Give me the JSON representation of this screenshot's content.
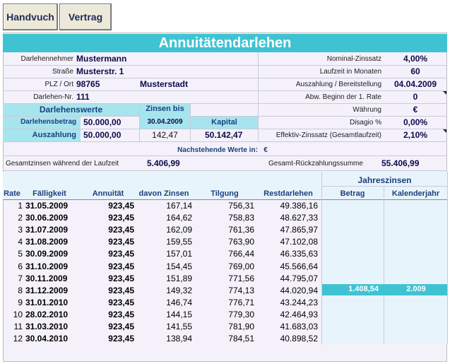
{
  "toolbar": {
    "handbuch_label": "Handvuch",
    "vertrag_label": "Vertrag"
  },
  "title": "Annuitätendarlehen",
  "borrower": {
    "name_label": "Darlehennehmer",
    "name": "Mustermann",
    "street_label": "Straße",
    "street": "Musterstr. 1",
    "plz_label": "PLZ / Ort",
    "plz": "98765",
    "city": "Musterstadt",
    "loan_no_label": "Darlehen-Nr.",
    "loan_no": "111"
  },
  "terms": {
    "nominal_label": "Nominal-Zinssatz",
    "nominal": "4,00%",
    "term_label": "Laufzeit in Monaten",
    "term": "60",
    "payout_date_label": "Auszahlung / Bereitstellung",
    "payout_date": "04.04.2009",
    "deviation_label": "Abw. Beginn der 1. Rate",
    "deviation": "0",
    "currency_label": "Währung",
    "currency": "€",
    "disagio_label": "Disagio %",
    "disagio": "0,00%",
    "effective_label": "Effektiv-Zinssatz (Gesamtlaufzeit)",
    "effective": "2,10%"
  },
  "values": {
    "header": "Darlehenswerte",
    "interest_until_label": "Zinsen bis",
    "interest_until_date": "30.04.2009",
    "kapital_label": "Kapital",
    "amount_label": "Darlehensbetrag",
    "amount": "50.000,00",
    "payout_label": "Auszahlung",
    "payout": "50.000,00",
    "interest": "142,47",
    "kapital": "50.142,47"
  },
  "summary": {
    "note_label": "Nachstehende Werte in:",
    "note_currency": "€",
    "total_interest_label": "Gesamtzinsen während der Laufzeit",
    "total_interest": "5.406,99",
    "total_repayment_label": "Gesamt-Rückzahlungssumme",
    "total_repayment": "55.406,99"
  },
  "table": {
    "headers": {
      "rate": "Rate",
      "date": "Fälligkeit",
      "annuity": "Annuität",
      "interest": "davon Zinsen",
      "repayment": "Tilgung",
      "rest": "Restdarlehen",
      "yearly": "Jahreszinsen",
      "amount": "Betrag",
      "year": "Kalenderjahr"
    },
    "rows": [
      {
        "n": "1",
        "date": "31.05.2009",
        "annuity": "923,45",
        "interest": "167,14",
        "repayment": "756,31",
        "rest": "49.386,16"
      },
      {
        "n": "2",
        "date": "30.06.2009",
        "annuity": "923,45",
        "interest": "164,62",
        "repayment": "758,83",
        "rest": "48.627,33"
      },
      {
        "n": "3",
        "date": "31.07.2009",
        "annuity": "923,45",
        "interest": "162,09",
        "repayment": "761,36",
        "rest": "47.865,97"
      },
      {
        "n": "4",
        "date": "31.08.2009",
        "annuity": "923,45",
        "interest": "159,55",
        "repayment": "763,90",
        "rest": "47.102,08"
      },
      {
        "n": "5",
        "date": "30.09.2009",
        "annuity": "923,45",
        "interest": "157,01",
        "repayment": "766,44",
        "rest": "46.335,63"
      },
      {
        "n": "6",
        "date": "31.10.2009",
        "annuity": "923,45",
        "interest": "154,45",
        "repayment": "769,00",
        "rest": "45.566,64"
      },
      {
        "n": "7",
        "date": "30.11.2009",
        "annuity": "923,45",
        "interest": "151,89",
        "repayment": "771,56",
        "rest": "44.795,07"
      },
      {
        "n": "8",
        "date": "31.12.2009",
        "annuity": "923,45",
        "interest": "149,32",
        "repayment": "774,13",
        "rest": "44.020,94"
      },
      {
        "n": "9",
        "date": "31.01.2010",
        "annuity": "923,45",
        "interest": "146,74",
        "repayment": "776,71",
        "rest": "43.244,23"
      },
      {
        "n": "10",
        "date": "28.02.2010",
        "annuity": "923,45",
        "interest": "144,15",
        "repayment": "779,30",
        "rest": "42.464,93"
      },
      {
        "n": "11",
        "date": "31.03.2010",
        "annuity": "923,45",
        "interest": "141,55",
        "repayment": "781,90",
        "rest": "41.683,03"
      },
      {
        "n": "12",
        "date": "30.04.2010",
        "annuity": "923,45",
        "interest": "138,94",
        "repayment": "784,51",
        "rest": "40.898,52"
      }
    ],
    "yearly_row": {
      "amount": "1.408,54",
      "year": "2.009"
    }
  },
  "colors": {
    "accent": "#3fc3d3",
    "light_cyan": "#a7e5ee",
    "header_text": "#1c3f7c"
  }
}
